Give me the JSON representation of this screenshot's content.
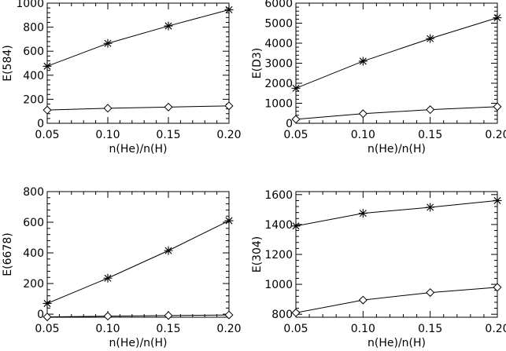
{
  "chart_data": [
    {
      "type": "line",
      "xlabel": "n(He)/n(H)",
      "ylabel": "E(584)",
      "xlim": [
        0.05,
        0.2
      ],
      "ylim": [
        0,
        1000
      ],
      "xticks": [
        "0.05",
        "0.10",
        "0.15",
        "0.20"
      ],
      "yticks": [
        "0",
        "200",
        "400",
        "600",
        "800",
        "1000"
      ],
      "xtick_values": [
        0.05,
        0.1,
        0.15,
        0.2
      ],
      "ytick_values": [
        0,
        200,
        400,
        600,
        800,
        1000
      ],
      "x": [
        0.05,
        0.1,
        0.15,
        0.2
      ],
      "series": [
        {
          "marker": "asterisk",
          "values": [
            475,
            665,
            810,
            945
          ]
        },
        {
          "marker": "diamond",
          "values": [
            110,
            125,
            135,
            145
          ]
        }
      ]
    },
    {
      "type": "line",
      "xlabel": "n(He)/n(H)",
      "ylabel": "E(D3)",
      "xlim": [
        0.05,
        0.2
      ],
      "ylim": [
        0,
        6000
      ],
      "xticks": [
        "0.05",
        "0.10",
        "0.15",
        "0.20"
      ],
      "yticks": [
        "0",
        "1000",
        "2000",
        "3000",
        "4000",
        "5000",
        "6000"
      ],
      "xtick_values": [
        0.05,
        0.1,
        0.15,
        0.2
      ],
      "ytick_values": [
        0,
        1000,
        2000,
        3000,
        4000,
        5000,
        6000
      ],
      "x": [
        0.05,
        0.1,
        0.15,
        0.2
      ],
      "series": [
        {
          "marker": "asterisk",
          "values": [
            1750,
            3100,
            4230,
            5270
          ]
        },
        {
          "marker": "diamond",
          "values": [
            200,
            480,
            680,
            830
          ]
        }
      ]
    },
    {
      "type": "line",
      "xlabel": "n(He)/n(H)",
      "ylabel": "E(6678)",
      "xlim": [
        0.05,
        0.2
      ],
      "ylim": [
        -20,
        800
      ],
      "xticks": [
        "0.05",
        "0.10",
        "0.15",
        "0.20"
      ],
      "yticks": [
        "0",
        "200",
        "400",
        "600",
        "800"
      ],
      "xtick_values": [
        0.05,
        0.1,
        0.15,
        0.2
      ],
      "ytick_values": [
        0,
        200,
        400,
        600,
        800
      ],
      "x": [
        0.05,
        0.1,
        0.15,
        0.2
      ],
      "series": [
        {
          "marker": "asterisk",
          "values": [
            70,
            235,
            415,
            610
          ]
        },
        {
          "marker": "diamond",
          "values": [
            -18,
            -13,
            -9,
            -5
          ]
        }
      ]
    },
    {
      "type": "line",
      "xlabel": "n(He)/n(H)",
      "ylabel": "E(304)",
      "xlim": [
        0.05,
        0.2
      ],
      "ylim": [
        780,
        1620
      ],
      "xticks": [
        "0.05",
        "0.10",
        "0.15",
        "0.20"
      ],
      "yticks": [
        "800",
        "1000",
        "1200",
        "1400",
        "1600"
      ],
      "xtick_values": [
        0.05,
        0.1,
        0.15,
        0.2
      ],
      "ytick_values": [
        800,
        1000,
        1200,
        1400,
        1600
      ],
      "x": [
        0.05,
        0.1,
        0.15,
        0.2
      ],
      "series": [
        {
          "marker": "asterisk",
          "values": [
            1390,
            1475,
            1515,
            1560
          ]
        },
        {
          "marker": "diamond",
          "values": [
            810,
            895,
            945,
            980
          ]
        }
      ]
    }
  ]
}
